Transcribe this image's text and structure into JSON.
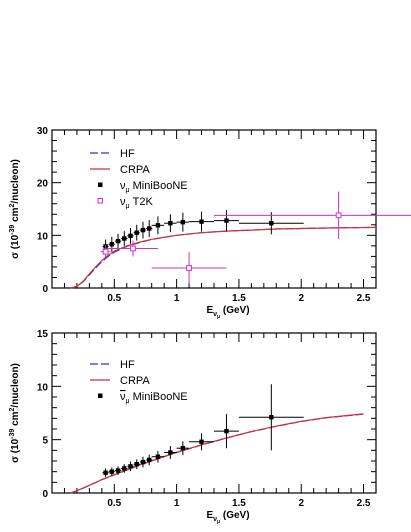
{
  "chart_data": [
    {
      "type": "line",
      "xlabel": "E",
      "xlabel_sub": "ν",
      "xlabel_subsub": "μ",
      "xlabel_unit": " (GeV)",
      "ylabel": "σ (10",
      "ylabel_exp": "-39",
      "ylabel_mid": " cm",
      "ylabel_exp2": "2",
      "ylabel_end": "/nucleon)",
      "xlim": [
        0,
        2.6
      ],
      "ylim": [
        0,
        30
      ],
      "x_ticks": [
        0.5,
        1,
        1.5,
        2,
        2.5
      ],
      "x_tick_labels": [
        "0.5",
        "1",
        "1.5",
        "2",
        "2.5"
      ],
      "y_ticks": [
        0,
        10,
        20,
        30
      ],
      "y_tick_labels": [
        "0",
        "10",
        "20",
        "30"
      ],
      "legend_position": "top-left",
      "legend": [
        {
          "key": "hf",
          "label": "HF",
          "style": "dashed-line",
          "color": "#3333cc"
        },
        {
          "key": "crpa",
          "label": "CRPA",
          "style": "solid-line",
          "color": "#cc3333"
        },
        {
          "key": "miniboone",
          "label_pre": "ν",
          "label_sub": "μ",
          "label_post": " MiniBooNE",
          "style": "filled-square",
          "color": "#000000"
        },
        {
          "key": "t2k",
          "label_pre": "ν",
          "label_sub": "μ",
          "label_post": " T2K",
          "style": "open-square",
          "color": "#cc33cc"
        }
      ],
      "series": [
        {
          "name": "HF",
          "kind": "curve",
          "color": "#3333cc",
          "x": [
            0.15,
            0.2,
            0.25,
            0.3,
            0.35,
            0.4,
            0.45,
            0.5,
            0.6,
            0.7,
            0.8,
            0.9,
            1.0,
            1.2,
            1.4,
            1.6,
            1.8,
            2.0,
            2.2,
            2.4,
            2.6
          ],
          "y": [
            0,
            0.3,
            1.2,
            2.5,
            3.8,
            5.0,
            6.0,
            6.8,
            7.9,
            8.6,
            9.2,
            9.6,
            10.0,
            10.5,
            10.8,
            11.0,
            11.2,
            11.3,
            11.4,
            11.45,
            11.5
          ]
        },
        {
          "name": "CRPA",
          "kind": "curve",
          "color": "#cc3333",
          "x": [
            0.15,
            0.2,
            0.25,
            0.3,
            0.35,
            0.4,
            0.45,
            0.5,
            0.6,
            0.7,
            0.8,
            0.9,
            1.0,
            1.2,
            1.4,
            1.6,
            1.8,
            2.0,
            2.2,
            2.4,
            2.6
          ],
          "y": [
            0,
            0.3,
            1.3,
            2.7,
            4.0,
            5.2,
            6.2,
            7.0,
            8.0,
            8.7,
            9.25,
            9.65,
            10.0,
            10.5,
            10.8,
            11.0,
            11.2,
            11.3,
            11.4,
            11.45,
            11.5
          ]
        },
        {
          "name": "MiniBooNE",
          "kind": "points",
          "color": "#000000",
          "marker": "filled-square",
          "x": [
            0.43,
            0.48,
            0.53,
            0.58,
            0.63,
            0.68,
            0.73,
            0.78,
            0.85,
            0.95,
            1.05,
            1.2,
            1.4,
            1.76
          ],
          "xerr": [
            0.025,
            0.025,
            0.025,
            0.025,
            0.025,
            0.025,
            0.025,
            0.025,
            0.05,
            0.05,
            0.05,
            0.1,
            0.1,
            0.26
          ],
          "y": [
            7.9,
            8.3,
            8.9,
            9.4,
            9.9,
            10.5,
            11.0,
            11.3,
            11.9,
            12.3,
            12.5,
            12.6,
            12.8,
            12.3
          ],
          "yerr": [
            1.3,
            1.4,
            1.4,
            1.4,
            1.5,
            1.5,
            1.6,
            1.6,
            1.7,
            1.7,
            1.8,
            1.9,
            2.0,
            2.1
          ]
        },
        {
          "name": "T2K",
          "kind": "points",
          "color": "#cc33cc",
          "marker": "open-square",
          "x": [
            0.43,
            0.65,
            1.1,
            2.3
          ],
          "xerr": [
            0.04,
            0.2,
            0.3,
            1.0
          ],
          "y": [
            6.9,
            7.5,
            3.8,
            13.8
          ],
          "yerr": [
            1.2,
            1.5,
            3.0,
            4.5
          ]
        }
      ]
    },
    {
      "type": "line",
      "xlabel": "E",
      "xlabel_sub": "ν",
      "xlabel_subsub": "μ",
      "xlabel_unit": " (GeV)",
      "ylabel": "σ (10",
      "ylabel_exp": "-39",
      "ylabel_mid": " cm",
      "ylabel_exp2": "2",
      "ylabel_end": "/nucleon)",
      "xlim": [
        0,
        2.6
      ],
      "ylim": [
        0,
        15
      ],
      "x_ticks": [
        0.5,
        1,
        1.5,
        2,
        2.5
      ],
      "x_tick_labels": [
        "0.5",
        "1",
        "1.5",
        "2",
        "2.5"
      ],
      "y_ticks": [
        0,
        5,
        10,
        15
      ],
      "y_tick_labels": [
        "0",
        "5",
        "10",
        "15"
      ],
      "legend_position": "top-left",
      "legend": [
        {
          "key": "hf",
          "label": "HF",
          "style": "dashed-line",
          "color": "#3333cc"
        },
        {
          "key": "crpa",
          "label": "CRPA",
          "style": "solid-line",
          "color": "#cc3333"
        },
        {
          "key": "miniboone",
          "label_pre": "ν",
          "label_sub": "μ",
          "label_post": " MiniBooNE",
          "style": "filled-square",
          "color": "#000000",
          "overbar": true
        }
      ],
      "series": [
        {
          "name": "HF",
          "kind": "curve",
          "color": "#3333cc",
          "x": [
            0.15,
            0.2,
            0.3,
            0.4,
            0.5,
            0.6,
            0.7,
            0.8,
            0.9,
            1.0,
            1.2,
            1.4,
            1.6,
            1.8,
            2.0,
            2.2,
            2.5
          ],
          "y": [
            0,
            0.2,
            0.7,
            1.25,
            1.7,
            2.15,
            2.6,
            3.0,
            3.4,
            3.8,
            4.5,
            5.15,
            5.75,
            6.25,
            6.7,
            7.05,
            7.4
          ]
        },
        {
          "name": "CRPA",
          "kind": "curve",
          "color": "#cc3333",
          "x": [
            0.15,
            0.2,
            0.3,
            0.4,
            0.5,
            0.6,
            0.7,
            0.8,
            0.9,
            1.0,
            1.2,
            1.4,
            1.6,
            1.8,
            2.0,
            2.2,
            2.5
          ],
          "y": [
            0,
            0.22,
            0.72,
            1.27,
            1.72,
            2.17,
            2.62,
            3.02,
            3.42,
            3.82,
            4.52,
            5.17,
            5.77,
            6.27,
            6.72,
            7.07,
            7.42
          ]
        },
        {
          "name": "MiniBooNE",
          "kind": "points",
          "color": "#000000",
          "marker": "filled-square",
          "x": [
            0.43,
            0.48,
            0.53,
            0.58,
            0.63,
            0.68,
            0.73,
            0.78,
            0.85,
            0.95,
            1.05,
            1.2,
            1.4,
            1.76
          ],
          "xerr": [
            0.025,
            0.025,
            0.025,
            0.025,
            0.025,
            0.025,
            0.025,
            0.025,
            0.05,
            0.05,
            0.05,
            0.1,
            0.1,
            0.26
          ],
          "y": [
            1.9,
            2.0,
            2.1,
            2.3,
            2.5,
            2.7,
            2.9,
            3.1,
            3.4,
            3.8,
            4.2,
            4.8,
            5.8,
            7.1
          ],
          "yerr": [
            0.4,
            0.4,
            0.4,
            0.4,
            0.45,
            0.45,
            0.5,
            0.5,
            0.55,
            0.6,
            0.65,
            0.8,
            1.6,
            3.1
          ]
        }
      ]
    }
  ]
}
